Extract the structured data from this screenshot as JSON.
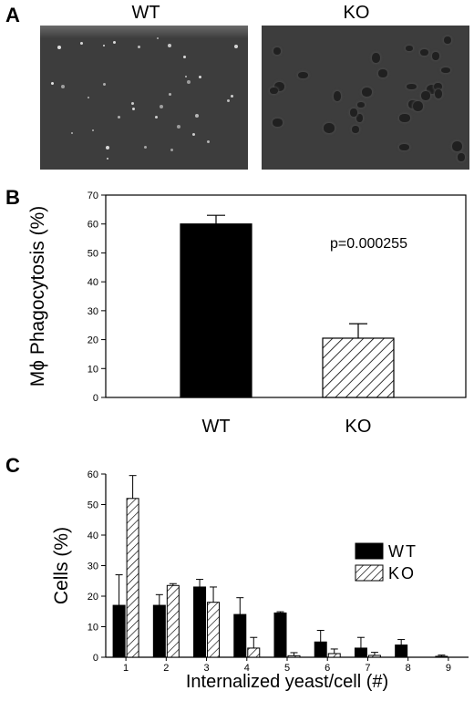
{
  "panel_a": {
    "letter": "A",
    "left_label": "WT",
    "right_label": "KO"
  },
  "panel_b": {
    "letter": "B",
    "annotation": "p=0.000255"
  },
  "panel_c": {
    "letter": "C"
  },
  "colors": {
    "wt": "#000000",
    "ko_hatch": "#000000",
    "micrograph_bg": "#3d3d3d",
    "wt_cells": "#e6e6e6",
    "ko_cells": "#202020"
  },
  "chart_data": [
    {
      "type": "bar",
      "panel": "B",
      "categories": [
        "WT",
        "KO"
      ],
      "values": [
        60,
        20.5
      ],
      "errors": [
        3,
        5
      ],
      "ylabel": "Mϕ Phagocytosis (%)",
      "xlabel": "",
      "ylim": [
        0,
        70
      ],
      "yticks": [
        0,
        10,
        20,
        30,
        40,
        50,
        60,
        70
      ],
      "fill": [
        "solid",
        "hatched"
      ],
      "annotation": "p=0.000255"
    },
    {
      "type": "bar",
      "panel": "C",
      "categories": [
        "1",
        "2",
        "3",
        "4",
        "5",
        "6",
        "7",
        "8",
        "9"
      ],
      "series": [
        {
          "name": "WT",
          "values": [
            17,
            17,
            23,
            14,
            14.5,
            5,
            3,
            4,
            0.3
          ],
          "errors": [
            10,
            3.5,
            2.5,
            5.5,
            0.4,
            3.8,
            3.5,
            1.8,
            0.4
          ],
          "fill": "solid"
        },
        {
          "name": "KO",
          "values": [
            52,
            23.5,
            18,
            3,
            0.5,
            1.2,
            0.6,
            0,
            0
          ],
          "errors": [
            7.5,
            0.6,
            5,
            3.5,
            1,
            1.5,
            1,
            0,
            0
          ],
          "fill": "hatched"
        }
      ],
      "xlabel": "Internalized yeast/cell (#)",
      "ylabel": "Cells (%)",
      "ylim": [
        0,
        60
      ],
      "yticks": [
        0,
        10,
        20,
        30,
        40,
        50,
        60
      ],
      "legend": "right"
    }
  ]
}
